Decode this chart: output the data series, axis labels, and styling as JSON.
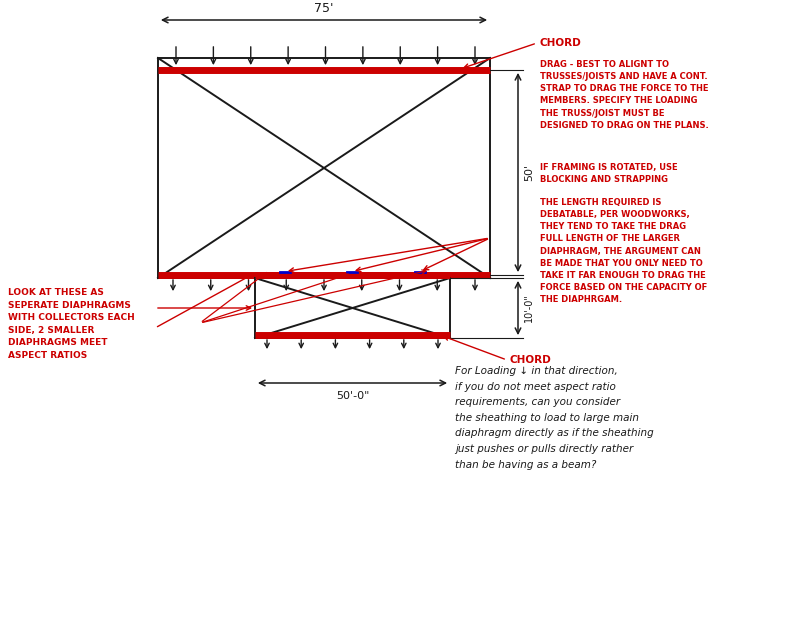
{
  "bg_color": "#ffffff",
  "line_color": "#1a1a1a",
  "red_color": "#cc0000",
  "blue_color": "#0000cc",
  "dim_75_label": "75'",
  "dim_50_label": "50'-0\"",
  "dim_10_label": "10'-0\"",
  "annotation1": "DRAG - BEST TO ALIGNT TO\nTRUSSES/JOISTS AND HAVE A CONT.\nSTRAP TO DRAG THE FORCE TO THE\nMEMBERS. SPECIFY THE LOADING\nTHE TRUSS/JOIST MUST BE\nDESIGNED TO DRAG ON THE PLANS.",
  "annotation2": "IF FRAMING IS ROTATED, USE\nBLOCKING AND STRAPPING",
  "annotation3": "THE LENGTH REQUIRED IS\nDEBATABLE, PER WOODWORKS,\nTHEY TEND TO TAKE THE DRAG\nFULL LENGTH OF THE LARGER\nDIAPHRAGM, THE ARGUMENT CAN\nBE MADE THAT YOU ONLY NEED TO\nTAKE IT FAR ENOUGH TO DRAG THE\nFORCE BASED ON THE CAPACITY OF\nTHE DIAPHRGAM.",
  "annotation4": "LOOK AT THESE AS\nSEPERATE DIAPHRAGMS\nWITH COLLECTORS EACH\nSIDE, 2 SMALLER\nDIAPHRAGMS MEET\nASPECT RATIOS",
  "handwriting": "For Loading ↓ in that direction,\nif you do not meet aspect ratio\nrequirements, can you consider\nthe sheathing to load to large main\ndiaphragm directly as if the sheathing\njust pushes or pulls directly rather\nthan be having as a beam?"
}
